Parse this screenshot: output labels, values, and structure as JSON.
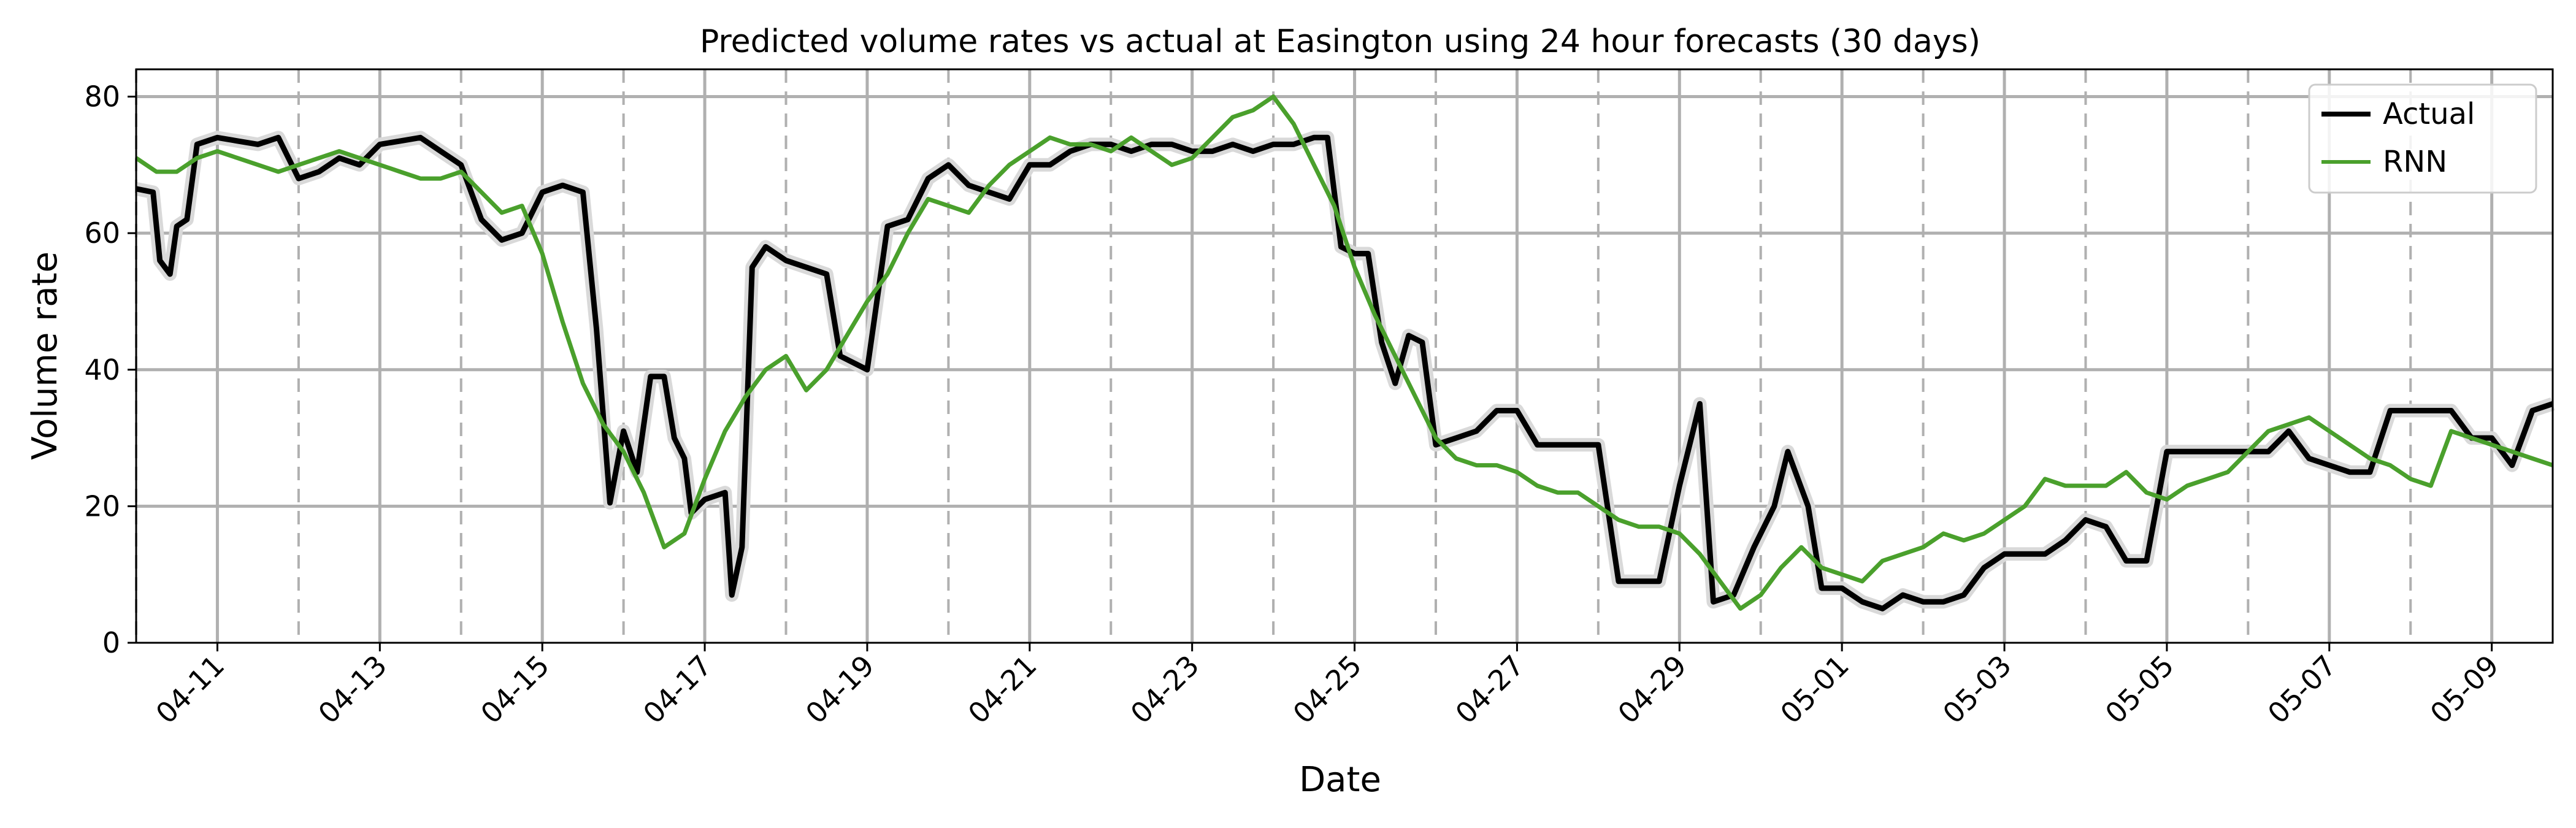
{
  "chart_data": {
    "type": "line",
    "title": "Predicted volume rates vs actual at Easington using 24 hour forecasts (30 days)",
    "xlabel": "Date",
    "ylabel": "Volume rate",
    "x_unit": "date",
    "xlim": [
      "2021-04-10T00:00",
      "2021-05-09T18:00"
    ],
    "ylim": [
      0,
      84
    ],
    "yticks": [
      0,
      20,
      40,
      60,
      80
    ],
    "xticks": [
      "04-11",
      "04-13",
      "04-15",
      "04-17",
      "04-19",
      "04-21",
      "04-23",
      "04-25",
      "04-27",
      "04-29",
      "05-01",
      "05-03",
      "05-05",
      "05-07",
      "05-09"
    ],
    "xtick_dates": [
      "2021-04-11",
      "2021-04-13",
      "2021-04-15",
      "2021-04-17",
      "2021-04-19",
      "2021-04-21",
      "2021-04-23",
      "2021-04-25",
      "2021-04-27",
      "2021-04-29",
      "2021-05-01",
      "2021-05-03",
      "2021-05-05",
      "2021-05-07",
      "2021-05-09"
    ],
    "minor_dashed_dates": [
      "2021-04-10",
      "2021-04-12",
      "2021-04-14",
      "2021-04-16",
      "2021-04-18",
      "2021-04-20",
      "2021-04-22",
      "2021-04-24",
      "2021-04-26",
      "2021-04-28",
      "2021-04-30",
      "2021-05-02",
      "2021-05-04",
      "2021-05-06",
      "2021-05-08"
    ],
    "grid": true,
    "legend_position": "top-right",
    "series": [
      {
        "name": "Actual",
        "color": "#000000",
        "points": [
          [
            "2021-04-10T00:00",
            66.5
          ],
          [
            "2021-04-10T05:00",
            66
          ],
          [
            "2021-04-10T07:00",
            56
          ],
          [
            "2021-04-10T10:00",
            54
          ],
          [
            "2021-04-10T12:00",
            61
          ],
          [
            "2021-04-10T15:00",
            62
          ],
          [
            "2021-04-10T18:00",
            73
          ],
          [
            "2021-04-11T00:00",
            74
          ],
          [
            "2021-04-11T06:00",
            73.5
          ],
          [
            "2021-04-11T12:00",
            73
          ],
          [
            "2021-04-11T18:00",
            74
          ],
          [
            "2021-04-12T00:00",
            68
          ],
          [
            "2021-04-12T06:00",
            69
          ],
          [
            "2021-04-12T12:00",
            71
          ],
          [
            "2021-04-12T18:00",
            70
          ],
          [
            "2021-04-13T00:00",
            73
          ],
          [
            "2021-04-13T06:00",
            73.5
          ],
          [
            "2021-04-13T12:00",
            74
          ],
          [
            "2021-04-13T18:00",
            72
          ],
          [
            "2021-04-14T00:00",
            70
          ],
          [
            "2021-04-14T06:00",
            62
          ],
          [
            "2021-04-14T12:00",
            59
          ],
          [
            "2021-04-14T18:00",
            60
          ],
          [
            "2021-04-15T00:00",
            66
          ],
          [
            "2021-04-15T06:00",
            67
          ],
          [
            "2021-04-15T12:00",
            66
          ],
          [
            "2021-04-15T16:00",
            46
          ],
          [
            "2021-04-15T20:00",
            20.5
          ],
          [
            "2021-04-16T00:00",
            31
          ],
          [
            "2021-04-16T04:00",
            25
          ],
          [
            "2021-04-16T08:00",
            39
          ],
          [
            "2021-04-16T12:00",
            39
          ],
          [
            "2021-04-16T15:00",
            30
          ],
          [
            "2021-04-16T18:00",
            27
          ],
          [
            "2021-04-16T20:00",
            19
          ],
          [
            "2021-04-17T00:00",
            21
          ],
          [
            "2021-04-17T06:00",
            22
          ],
          [
            "2021-04-17T08:00",
            7
          ],
          [
            "2021-04-17T11:00",
            14
          ],
          [
            "2021-04-17T14:00",
            55
          ],
          [
            "2021-04-17T18:00",
            58
          ],
          [
            "2021-04-18T00:00",
            56
          ],
          [
            "2021-04-18T06:00",
            55
          ],
          [
            "2021-04-18T12:00",
            54
          ],
          [
            "2021-04-18T16:00",
            42
          ],
          [
            "2021-04-18T20:00",
            41
          ],
          [
            "2021-04-19T00:00",
            40
          ],
          [
            "2021-04-19T06:00",
            61
          ],
          [
            "2021-04-19T12:00",
            62
          ],
          [
            "2021-04-19T18:00",
            68
          ],
          [
            "2021-04-20T00:00",
            70
          ],
          [
            "2021-04-20T06:00",
            67
          ],
          [
            "2021-04-20T12:00",
            66
          ],
          [
            "2021-04-20T18:00",
            65
          ],
          [
            "2021-04-21T00:00",
            70
          ],
          [
            "2021-04-21T06:00",
            70
          ],
          [
            "2021-04-21T12:00",
            72
          ],
          [
            "2021-04-21T18:00",
            73
          ],
          [
            "2021-04-22T00:00",
            73
          ],
          [
            "2021-04-22T06:00",
            72
          ],
          [
            "2021-04-22T12:00",
            73
          ],
          [
            "2021-04-22T18:00",
            73
          ],
          [
            "2021-04-23T00:00",
            72
          ],
          [
            "2021-04-23T06:00",
            72
          ],
          [
            "2021-04-23T12:00",
            73
          ],
          [
            "2021-04-23T18:00",
            72
          ],
          [
            "2021-04-24T00:00",
            73
          ],
          [
            "2021-04-24T06:00",
            73
          ],
          [
            "2021-04-24T12:00",
            74
          ],
          [
            "2021-04-24T16:00",
            74
          ],
          [
            "2021-04-24T20:00",
            58
          ],
          [
            "2021-04-25T00:00",
            57
          ],
          [
            "2021-04-25T04:00",
            57
          ],
          [
            "2021-04-25T08:00",
            44
          ],
          [
            "2021-04-25T12:00",
            38
          ],
          [
            "2021-04-25T16:00",
            45
          ],
          [
            "2021-04-25T20:00",
            44
          ],
          [
            "2021-04-26T00:00",
            29
          ],
          [
            "2021-04-26T06:00",
            30
          ],
          [
            "2021-04-26T12:00",
            31
          ],
          [
            "2021-04-26T18:00",
            34
          ],
          [
            "2021-04-27T00:00",
            34
          ],
          [
            "2021-04-27T06:00",
            29
          ],
          [
            "2021-04-27T12:00",
            29
          ],
          [
            "2021-04-27T18:00",
            29
          ],
          [
            "2021-04-28T00:00",
            29
          ],
          [
            "2021-04-28T06:00",
            9
          ],
          [
            "2021-04-28T12:00",
            9
          ],
          [
            "2021-04-28T18:00",
            9
          ],
          [
            "2021-04-29T00:00",
            23
          ],
          [
            "2021-04-29T06:00",
            35
          ],
          [
            "2021-04-29T10:00",
            6
          ],
          [
            "2021-04-29T16:00",
            7
          ],
          [
            "2021-04-29T22:00",
            14
          ],
          [
            "2021-04-30T04:00",
            20
          ],
          [
            "2021-04-30T08:00",
            28
          ],
          [
            "2021-04-30T14:00",
            20
          ],
          [
            "2021-04-30T18:00",
            8
          ],
          [
            "2021-05-01T00:00",
            8
          ],
          [
            "2021-05-01T06:00",
            6
          ],
          [
            "2021-05-01T12:00",
            5
          ],
          [
            "2021-05-01T18:00",
            7
          ],
          [
            "2021-05-02T00:00",
            6
          ],
          [
            "2021-05-02T06:00",
            6
          ],
          [
            "2021-05-02T12:00",
            7
          ],
          [
            "2021-05-02T18:00",
            11
          ],
          [
            "2021-05-03T00:00",
            13
          ],
          [
            "2021-05-03T06:00",
            13
          ],
          [
            "2021-05-03T12:00",
            13
          ],
          [
            "2021-05-03T18:00",
            15
          ],
          [
            "2021-05-04T00:00",
            18
          ],
          [
            "2021-05-04T06:00",
            17
          ],
          [
            "2021-05-04T12:00",
            12
          ],
          [
            "2021-05-04T18:00",
            12
          ],
          [
            "2021-05-05T00:00",
            28
          ],
          [
            "2021-05-05T06:00",
            28
          ],
          [
            "2021-05-05T12:00",
            28
          ],
          [
            "2021-05-05T18:00",
            28
          ],
          [
            "2021-05-06T00:00",
            28
          ],
          [
            "2021-05-06T06:00",
            28
          ],
          [
            "2021-05-06T12:00",
            31
          ],
          [
            "2021-05-06T18:00",
            27
          ],
          [
            "2021-05-07T00:00",
            26
          ],
          [
            "2021-05-07T06:00",
            25
          ],
          [
            "2021-05-07T12:00",
            25
          ],
          [
            "2021-05-07T18:00",
            34
          ],
          [
            "2021-05-08T00:00",
            34
          ],
          [
            "2021-05-08T06:00",
            34
          ],
          [
            "2021-05-08T12:00",
            34
          ],
          [
            "2021-05-08T18:00",
            30
          ],
          [
            "2021-05-09T00:00",
            30
          ],
          [
            "2021-05-09T06:00",
            26
          ],
          [
            "2021-05-09T12:00",
            34
          ],
          [
            "2021-05-09T18:00",
            35
          ]
        ]
      },
      {
        "name": "RNN",
        "color": "#4aa02c",
        "points": [
          [
            "2021-04-10T00:00",
            71
          ],
          [
            "2021-04-10T06:00",
            69
          ],
          [
            "2021-04-10T12:00",
            69
          ],
          [
            "2021-04-10T18:00",
            71
          ],
          [
            "2021-04-11T00:00",
            72
          ],
          [
            "2021-04-11T06:00",
            71
          ],
          [
            "2021-04-11T12:00",
            70
          ],
          [
            "2021-04-11T18:00",
            69
          ],
          [
            "2021-04-12T00:00",
            70
          ],
          [
            "2021-04-12T06:00",
            71
          ],
          [
            "2021-04-12T12:00",
            72
          ],
          [
            "2021-04-12T18:00",
            71
          ],
          [
            "2021-04-13T00:00",
            70
          ],
          [
            "2021-04-13T06:00",
            69
          ],
          [
            "2021-04-13T12:00",
            68
          ],
          [
            "2021-04-13T18:00",
            68
          ],
          [
            "2021-04-14T00:00",
            69
          ],
          [
            "2021-04-14T06:00",
            66
          ],
          [
            "2021-04-14T12:00",
            63
          ],
          [
            "2021-04-14T18:00",
            64
          ],
          [
            "2021-04-15T00:00",
            57
          ],
          [
            "2021-04-15T06:00",
            47
          ],
          [
            "2021-04-15T12:00",
            38
          ],
          [
            "2021-04-15T18:00",
            32
          ],
          [
            "2021-04-16T00:00",
            28
          ],
          [
            "2021-04-16T06:00",
            22
          ],
          [
            "2021-04-16T12:00",
            14
          ],
          [
            "2021-04-16T18:00",
            16
          ],
          [
            "2021-04-17T00:00",
            24
          ],
          [
            "2021-04-17T06:00",
            31
          ],
          [
            "2021-04-17T12:00",
            36
          ],
          [
            "2021-04-17T18:00",
            40
          ],
          [
            "2021-04-18T00:00",
            42
          ],
          [
            "2021-04-18T06:00",
            37
          ],
          [
            "2021-04-18T12:00",
            40
          ],
          [
            "2021-04-18T18:00",
            45
          ],
          [
            "2021-04-19T00:00",
            50
          ],
          [
            "2021-04-19T06:00",
            54
          ],
          [
            "2021-04-19T12:00",
            60
          ],
          [
            "2021-04-19T18:00",
            65
          ],
          [
            "2021-04-20T00:00",
            64
          ],
          [
            "2021-04-20T06:00",
            63
          ],
          [
            "2021-04-20T12:00",
            67
          ],
          [
            "2021-04-20T18:00",
            70
          ],
          [
            "2021-04-21T00:00",
            72
          ],
          [
            "2021-04-21T06:00",
            74
          ],
          [
            "2021-04-21T12:00",
            73
          ],
          [
            "2021-04-21T18:00",
            73
          ],
          [
            "2021-04-22T00:00",
            72
          ],
          [
            "2021-04-22T06:00",
            74
          ],
          [
            "2021-04-22T12:00",
            72
          ],
          [
            "2021-04-22T18:00",
            70
          ],
          [
            "2021-04-23T00:00",
            71
          ],
          [
            "2021-04-23T06:00",
            74
          ],
          [
            "2021-04-23T12:00",
            77
          ],
          [
            "2021-04-23T18:00",
            78
          ],
          [
            "2021-04-24T00:00",
            80
          ],
          [
            "2021-04-24T06:00",
            76
          ],
          [
            "2021-04-24T12:00",
            70
          ],
          [
            "2021-04-24T18:00",
            64
          ],
          [
            "2021-04-25T00:00",
            55
          ],
          [
            "2021-04-25T06:00",
            48
          ],
          [
            "2021-04-25T12:00",
            42
          ],
          [
            "2021-04-25T18:00",
            36
          ],
          [
            "2021-04-26T00:00",
            30
          ],
          [
            "2021-04-26T06:00",
            27
          ],
          [
            "2021-04-26T12:00",
            26
          ],
          [
            "2021-04-26T18:00",
            26
          ],
          [
            "2021-04-27T00:00",
            25
          ],
          [
            "2021-04-27T06:00",
            23
          ],
          [
            "2021-04-27T12:00",
            22
          ],
          [
            "2021-04-27T18:00",
            22
          ],
          [
            "2021-04-28T00:00",
            20
          ],
          [
            "2021-04-28T06:00",
            18
          ],
          [
            "2021-04-28T12:00",
            17
          ],
          [
            "2021-04-28T18:00",
            17
          ],
          [
            "2021-04-29T00:00",
            16
          ],
          [
            "2021-04-29T06:00",
            13
          ],
          [
            "2021-04-29T12:00",
            9
          ],
          [
            "2021-04-29T18:00",
            5
          ],
          [
            "2021-04-30T00:00",
            7
          ],
          [
            "2021-04-30T06:00",
            11
          ],
          [
            "2021-04-30T12:00",
            14
          ],
          [
            "2021-04-30T18:00",
            11
          ],
          [
            "2021-05-01T00:00",
            10
          ],
          [
            "2021-05-01T06:00",
            9
          ],
          [
            "2021-05-01T12:00",
            12
          ],
          [
            "2021-05-01T18:00",
            13
          ],
          [
            "2021-05-02T00:00",
            14
          ],
          [
            "2021-05-02T06:00",
            16
          ],
          [
            "2021-05-02T12:00",
            15
          ],
          [
            "2021-05-02T18:00",
            16
          ],
          [
            "2021-05-03T00:00",
            18
          ],
          [
            "2021-05-03T06:00",
            20
          ],
          [
            "2021-05-03T12:00",
            24
          ],
          [
            "2021-05-03T18:00",
            23
          ],
          [
            "2021-05-04T00:00",
            23
          ],
          [
            "2021-05-04T06:00",
            23
          ],
          [
            "2021-05-04T12:00",
            25
          ],
          [
            "2021-05-04T18:00",
            22
          ],
          [
            "2021-05-05T00:00",
            21
          ],
          [
            "2021-05-05T06:00",
            23
          ],
          [
            "2021-05-05T12:00",
            24
          ],
          [
            "2021-05-05T18:00",
            25
          ],
          [
            "2021-05-06T00:00",
            28
          ],
          [
            "2021-05-06T06:00",
            31
          ],
          [
            "2021-05-06T12:00",
            32
          ],
          [
            "2021-05-06T18:00",
            33
          ],
          [
            "2021-05-07T00:00",
            31
          ],
          [
            "2021-05-07T06:00",
            29
          ],
          [
            "2021-05-07T12:00",
            27
          ],
          [
            "2021-05-07T18:00",
            26
          ],
          [
            "2021-05-08T00:00",
            24
          ],
          [
            "2021-05-08T06:00",
            23
          ],
          [
            "2021-05-08T12:00",
            31
          ],
          [
            "2021-05-08T18:00",
            30
          ],
          [
            "2021-05-09T00:00",
            29
          ],
          [
            "2021-05-09T06:00",
            28
          ],
          [
            "2021-05-09T12:00",
            27
          ],
          [
            "2021-05-09T18:00",
            26
          ]
        ]
      }
    ]
  }
}
